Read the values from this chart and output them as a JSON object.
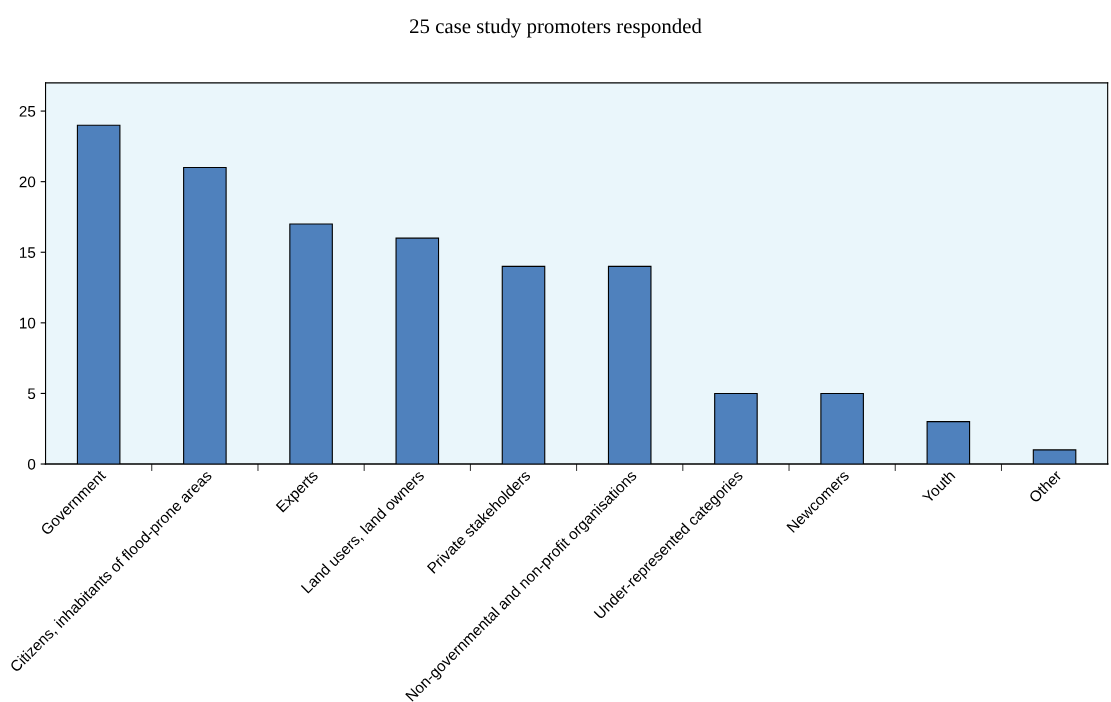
{
  "chart_data": {
    "type": "bar",
    "title": "25 case study promoters responded",
    "categories": [
      "Government",
      "Citizens, inhabitants of flood-prone areas",
      "Experts",
      "Land users, land owners",
      "Private stakeholders",
      "Non-governmental and non-profit organisations",
      "Under-represented categories",
      "Newcomers",
      "Youth",
      "Other"
    ],
    "values": [
      24,
      21,
      17,
      16,
      14,
      14,
      5,
      5,
      3,
      1
    ],
    "color": "#4f81bd",
    "ylim": [
      0,
      27
    ],
    "yticks": [
      0,
      5,
      10,
      15,
      20,
      25
    ],
    "grid": false,
    "legend": false
  }
}
